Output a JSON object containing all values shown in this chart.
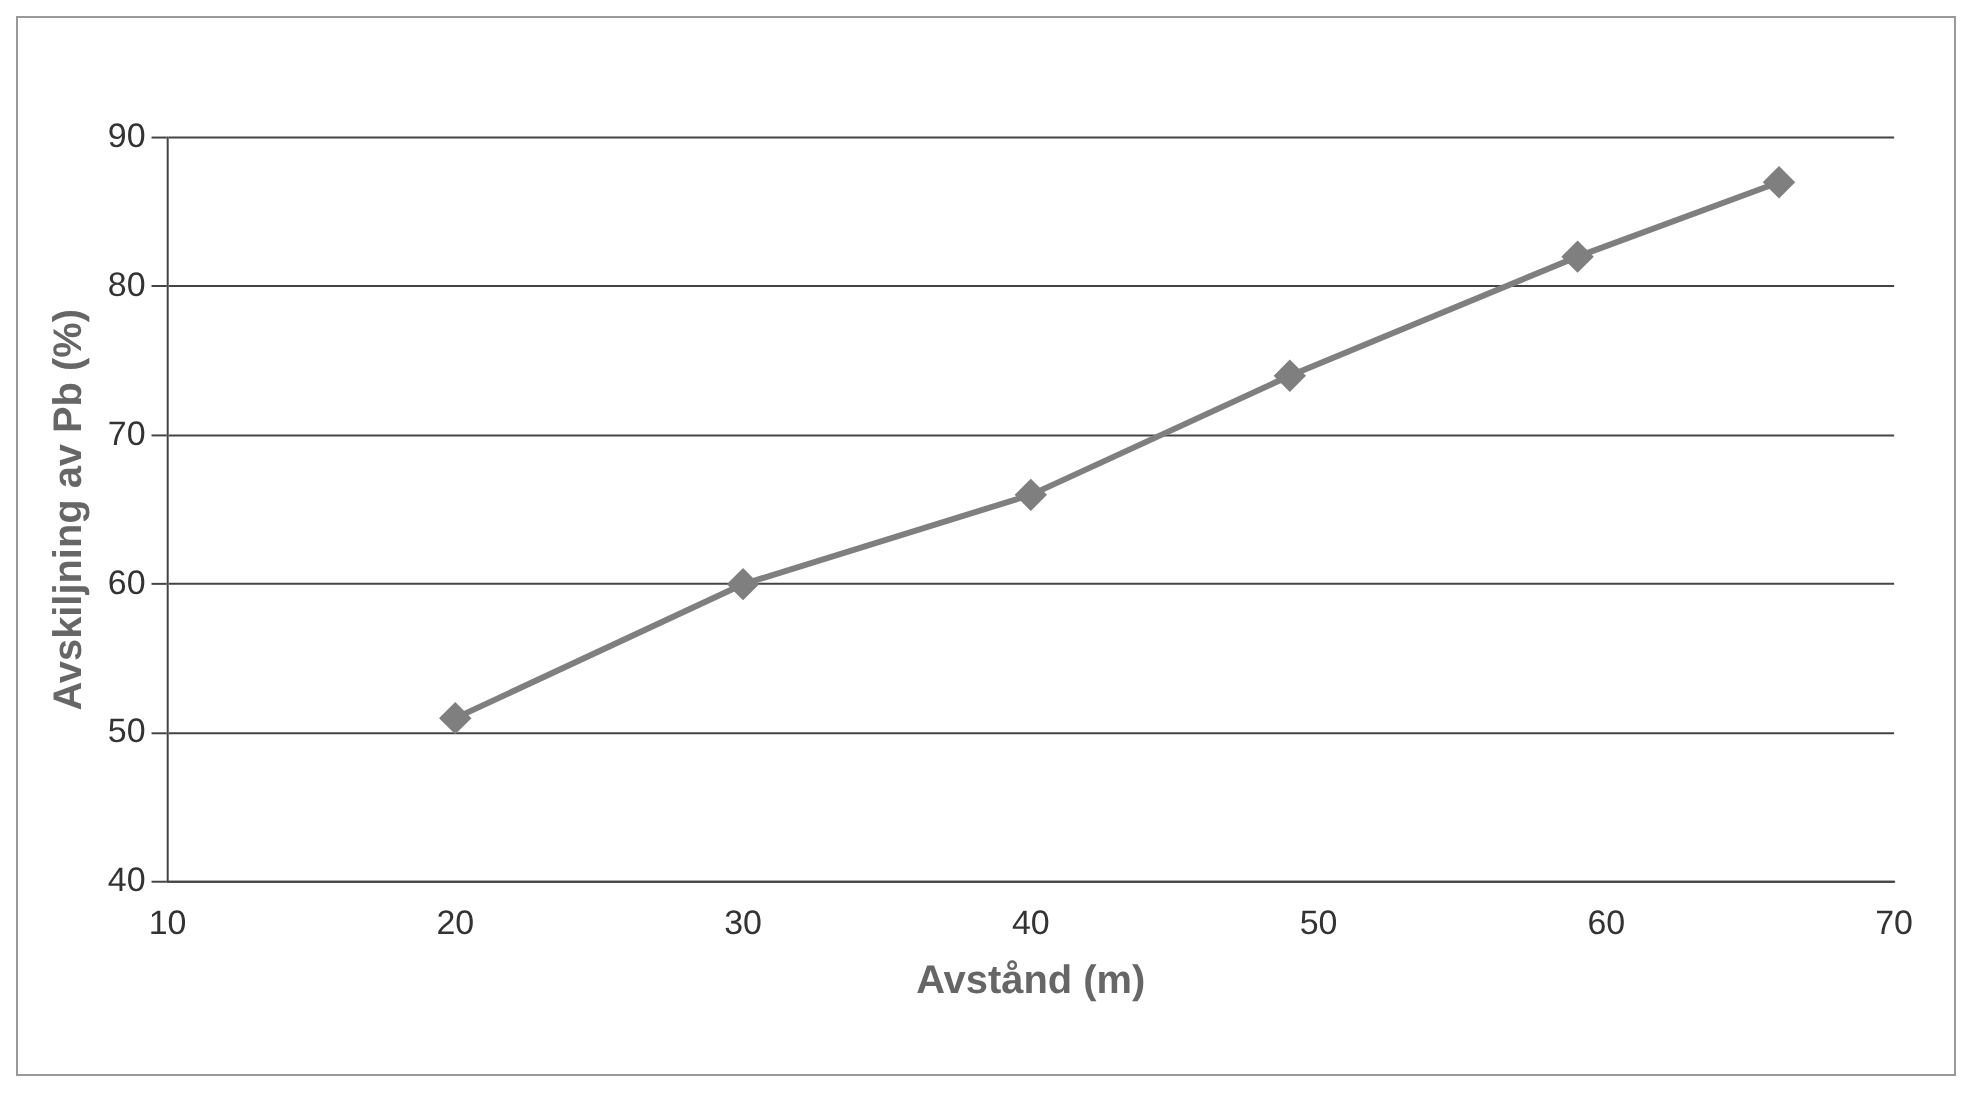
{
  "chart_data": {
    "type": "line",
    "xlabel": "Avstånd (m)",
    "ylabel": "Avskiljning av Pb (%)",
    "x": [
      20,
      30,
      40,
      49,
      59,
      66
    ],
    "series": [
      {
        "color": "#7f7f7f",
        "values": [
          51,
          60,
          66,
          74,
          82,
          87
        ]
      }
    ],
    "xlim": [
      10,
      70
    ],
    "xticks": [
      10,
      20,
      30,
      40,
      50,
      60,
      70
    ],
    "ylim": [
      40,
      90
    ],
    "yticks": [
      40,
      50,
      60,
      70,
      80,
      90
    ],
    "grid": "y",
    "marker": "diamond",
    "line_style": "solid",
    "legend": false
  }
}
